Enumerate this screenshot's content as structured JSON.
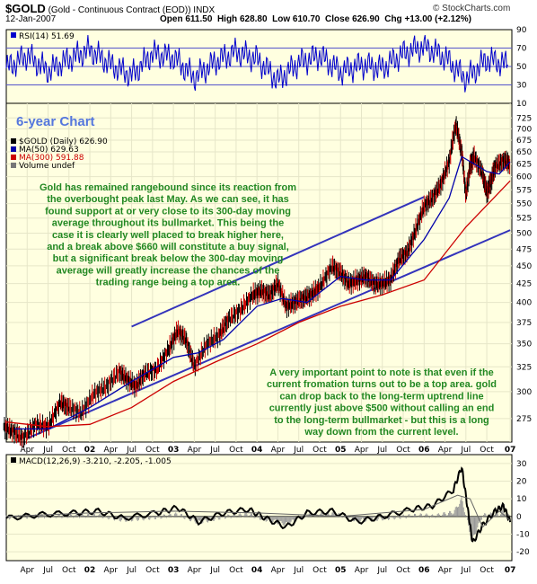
{
  "header": {
    "symbol": "$GOLD",
    "name": "(Gold - Continuous Contract (EOD)) INDX",
    "date": "12-Jan-2007",
    "open_label": "Open",
    "open": "611.50",
    "high_label": "High",
    "high": "628.80",
    "low_label": "Low",
    "low": "610.70",
    "close_label": "Close",
    "close": "626.90",
    "chg_label": "Chg",
    "chg": "+13.00 (+2.12%)",
    "copyright": "© StockCharts.com",
    "chart_title": "6-year Chart"
  },
  "colors": {
    "panel_bg": "#ffffe0",
    "rsi_line": "#0000cc",
    "ma50": "#0000aa",
    "ma300": "#cc0000",
    "trendline": "#3333bb",
    "annotation": "#228822",
    "title": "#5577dd",
    "up_bar": "#000000",
    "down_bar": "#cc0000",
    "histogram": "#999999"
  },
  "chart_data": [
    {
      "type": "line",
      "title": "RSI(14) 51.69",
      "ylim": [
        10,
        90
      ],
      "ticks": [
        "90",
        "70",
        "50",
        "30",
        "10"
      ],
      "tick_values": [
        90,
        70,
        50,
        30,
        10
      ],
      "reference_lines": [
        70,
        50,
        30
      ],
      "series": [
        {
          "name": "RSI(14)",
          "x": [
            2001.0,
            2001.25,
            2001.5,
            2001.75,
            2002.0,
            2002.25,
            2002.5,
            2002.75,
            2003.0,
            2003.25,
            2003.5,
            2003.75,
            2004.0,
            2004.25,
            2004.5,
            2004.75,
            2005.0,
            2005.25,
            2005.5,
            2005.75,
            2006.0,
            2006.25,
            2006.5,
            2006.75,
            2007.0
          ],
          "values": [
            48,
            62,
            45,
            58,
            68,
            52,
            40,
            64,
            60,
            38,
            55,
            66,
            58,
            35,
            54,
            62,
            44,
            52,
            48,
            64,
            72,
            60,
            36,
            58,
            52
          ]
        }
      ]
    },
    {
      "type": "line",
      "title": "$GOLD (Daily) 626.90",
      "yscale": "log",
      "ylim": [
        255,
        760
      ],
      "yticks": [
        "725",
        "700",
        "675",
        "650",
        "625",
        "600",
        "575",
        "550",
        "525",
        "500",
        "475",
        "450",
        "425",
        "400",
        "375",
        "350",
        "325",
        "300",
        "275"
      ],
      "ytick_values": [
        725,
        700,
        675,
        650,
        625,
        600,
        575,
        550,
        525,
        500,
        475,
        450,
        425,
        400,
        375,
        350,
        325,
        300,
        275
      ],
      "xticks": [
        "Apr",
        "Jul",
        "Oct",
        "02",
        "Apr",
        "Jul",
        "Oct",
        "03",
        "Apr",
        "Jul",
        "Oct",
        "04",
        "Apr",
        "Jul",
        "Oct",
        "05",
        "Apr",
        "Jul",
        "Oct",
        "06",
        "Apr",
        "Jul",
        "Oct",
        "07"
      ],
      "xtick_values": [
        2001.25,
        2001.5,
        2001.75,
        2002.0,
        2002.25,
        2002.5,
        2002.75,
        2003.0,
        2003.25,
        2003.5,
        2003.75,
        2004.0,
        2004.25,
        2004.5,
        2004.75,
        2005.0,
        2005.25,
        2005.5,
        2005.75,
        2006.0,
        2006.25,
        2006.5,
        2006.75,
        2007.03
      ],
      "legend": [
        "$GOLD (Daily) 626.90",
        "MA(50) 629.63",
        "MA(300) 591.88",
        "Volume undef"
      ],
      "series": [
        {
          "name": "$GOLD (Daily)",
          "x": [
            2000.97,
            2001.08,
            2001.2,
            2001.35,
            2001.5,
            2001.65,
            2001.75,
            2001.9,
            2002.05,
            2002.2,
            2002.35,
            2002.45,
            2002.55,
            2002.65,
            2002.8,
            2002.95,
            2003.05,
            2003.15,
            2003.25,
            2003.4,
            2003.55,
            2003.65,
            2003.8,
            2003.95,
            2004.05,
            2004.15,
            2004.25,
            2004.35,
            2004.45,
            2004.55,
            2004.65,
            2004.75,
            2004.9,
            2005.0,
            2005.1,
            2005.2,
            2005.3,
            2005.4,
            2005.5,
            2005.6,
            2005.7,
            2005.8,
            2005.9,
            2006.0,
            2006.1,
            2006.2,
            2006.3,
            2006.38,
            2006.45,
            2006.5,
            2006.55,
            2006.6,
            2006.7,
            2006.75,
            2006.8,
            2006.85,
            2006.95,
            2007.03
          ],
          "values": [
            268,
            264,
            258,
            270,
            268,
            290,
            285,
            280,
            298,
            305,
            320,
            312,
            305,
            318,
            322,
            345,
            365,
            355,
            325,
            350,
            360,
            378,
            390,
            410,
            415,
            410,
            425,
            395,
            400,
            405,
            410,
            420,
            450,
            440,
            425,
            430,
            435,
            425,
            425,
            430,
            460,
            470,
            505,
            545,
            560,
            585,
            630,
            710,
            650,
            565,
            620,
            640,
            605,
            570,
            590,
            620,
            632,
            627
          ]
        },
        {
          "name": "MA(50)",
          "x": [
            2001.1,
            2001.5,
            2002.0,
            2002.5,
            2003.0,
            2003.3,
            2003.6,
            2004.0,
            2004.3,
            2004.6,
            2005.0,
            2005.3,
            2005.6,
            2006.0,
            2006.3,
            2006.45,
            2006.6,
            2006.75,
            2006.9,
            2007.03
          ],
          "values": [
            266,
            266,
            285,
            310,
            335,
            340,
            355,
            395,
            405,
            400,
            435,
            430,
            430,
            490,
            560,
            640,
            625,
            610,
            605,
            629.63
          ]
        },
        {
          "name": "MA(300)",
          "x": [
            2001.0,
            2001.5,
            2002.0,
            2002.5,
            2003.0,
            2003.5,
            2004.0,
            2004.5,
            2005.0,
            2005.5,
            2006.0,
            2006.5,
            2007.03
          ],
          "values": [
            272,
            268,
            270,
            285,
            310,
            330,
            350,
            375,
            395,
            410,
            430,
            510,
            591.88
          ]
        }
      ],
      "trendlines": [
        {
          "x": [
            2002.5,
            2006.0
          ],
          "values": [
            370,
            562
          ]
        },
        {
          "x": [
            2001.25,
            2007.03
          ],
          "values": [
            258,
            505
          ]
        }
      ],
      "annotations": [
        "Gold has remained rangebound since its reaction from the overbought peak last May. As we can see, it has found support at or very close to its 300-day moving average throughout its bullmarket. This being the case it is clearly well placed to break higher here, and a break above $660 will constitute a buy signal, but a significant break below the 300-day moving average will greatly increase the chances of the trading range being a top area.",
        "A very important point to note is that even if the current fromation turns out to be a top area. gold can drop back to the long-term uptrend line currently just above $500 without calling an end to the long-term bullmarket - but this is a long way down from the current level."
      ]
    },
    {
      "type": "line",
      "title": "MACD(12,26,9) -3.210, -2.205, -1.005",
      "ylim": [
        -25,
        35
      ],
      "yticks": [
        "30",
        "20",
        "10",
        "0",
        "-10",
        "-20"
      ],
      "ytick_values": [
        30,
        20,
        10,
        0,
        -10,
        -20
      ],
      "series": [
        {
          "name": "MACD",
          "x": [
            2001.0,
            2001.4,
            2001.8,
            2002.1,
            2002.4,
            2002.8,
            2003.05,
            2003.3,
            2003.6,
            2003.9,
            2004.1,
            2004.35,
            2004.6,
            2004.9,
            2005.2,
            2005.5,
            2005.85,
            2006.1,
            2006.35,
            2006.45,
            2006.52,
            2006.58,
            2006.7,
            2006.85,
            2006.95,
            2007.03
          ],
          "values": [
            -1,
            1,
            2,
            3,
            -1,
            2,
            5,
            -3,
            2,
            4,
            -1,
            -6,
            2,
            3,
            -3,
            0,
            4,
            6,
            15,
            28,
            5,
            -15,
            -5,
            3,
            6,
            -3.2
          ]
        },
        {
          "name": "Signal",
          "x": [
            2001.0,
            2002.0,
            2003.0,
            2004.0,
            2005.0,
            2006.0,
            2006.4,
            2006.55,
            2006.7,
            2006.9,
            2007.03
          ],
          "values": [
            0,
            2,
            3,
            2,
            0,
            4,
            12,
            10,
            -6,
            3,
            -2.205
          ]
        }
      ]
    }
  ]
}
